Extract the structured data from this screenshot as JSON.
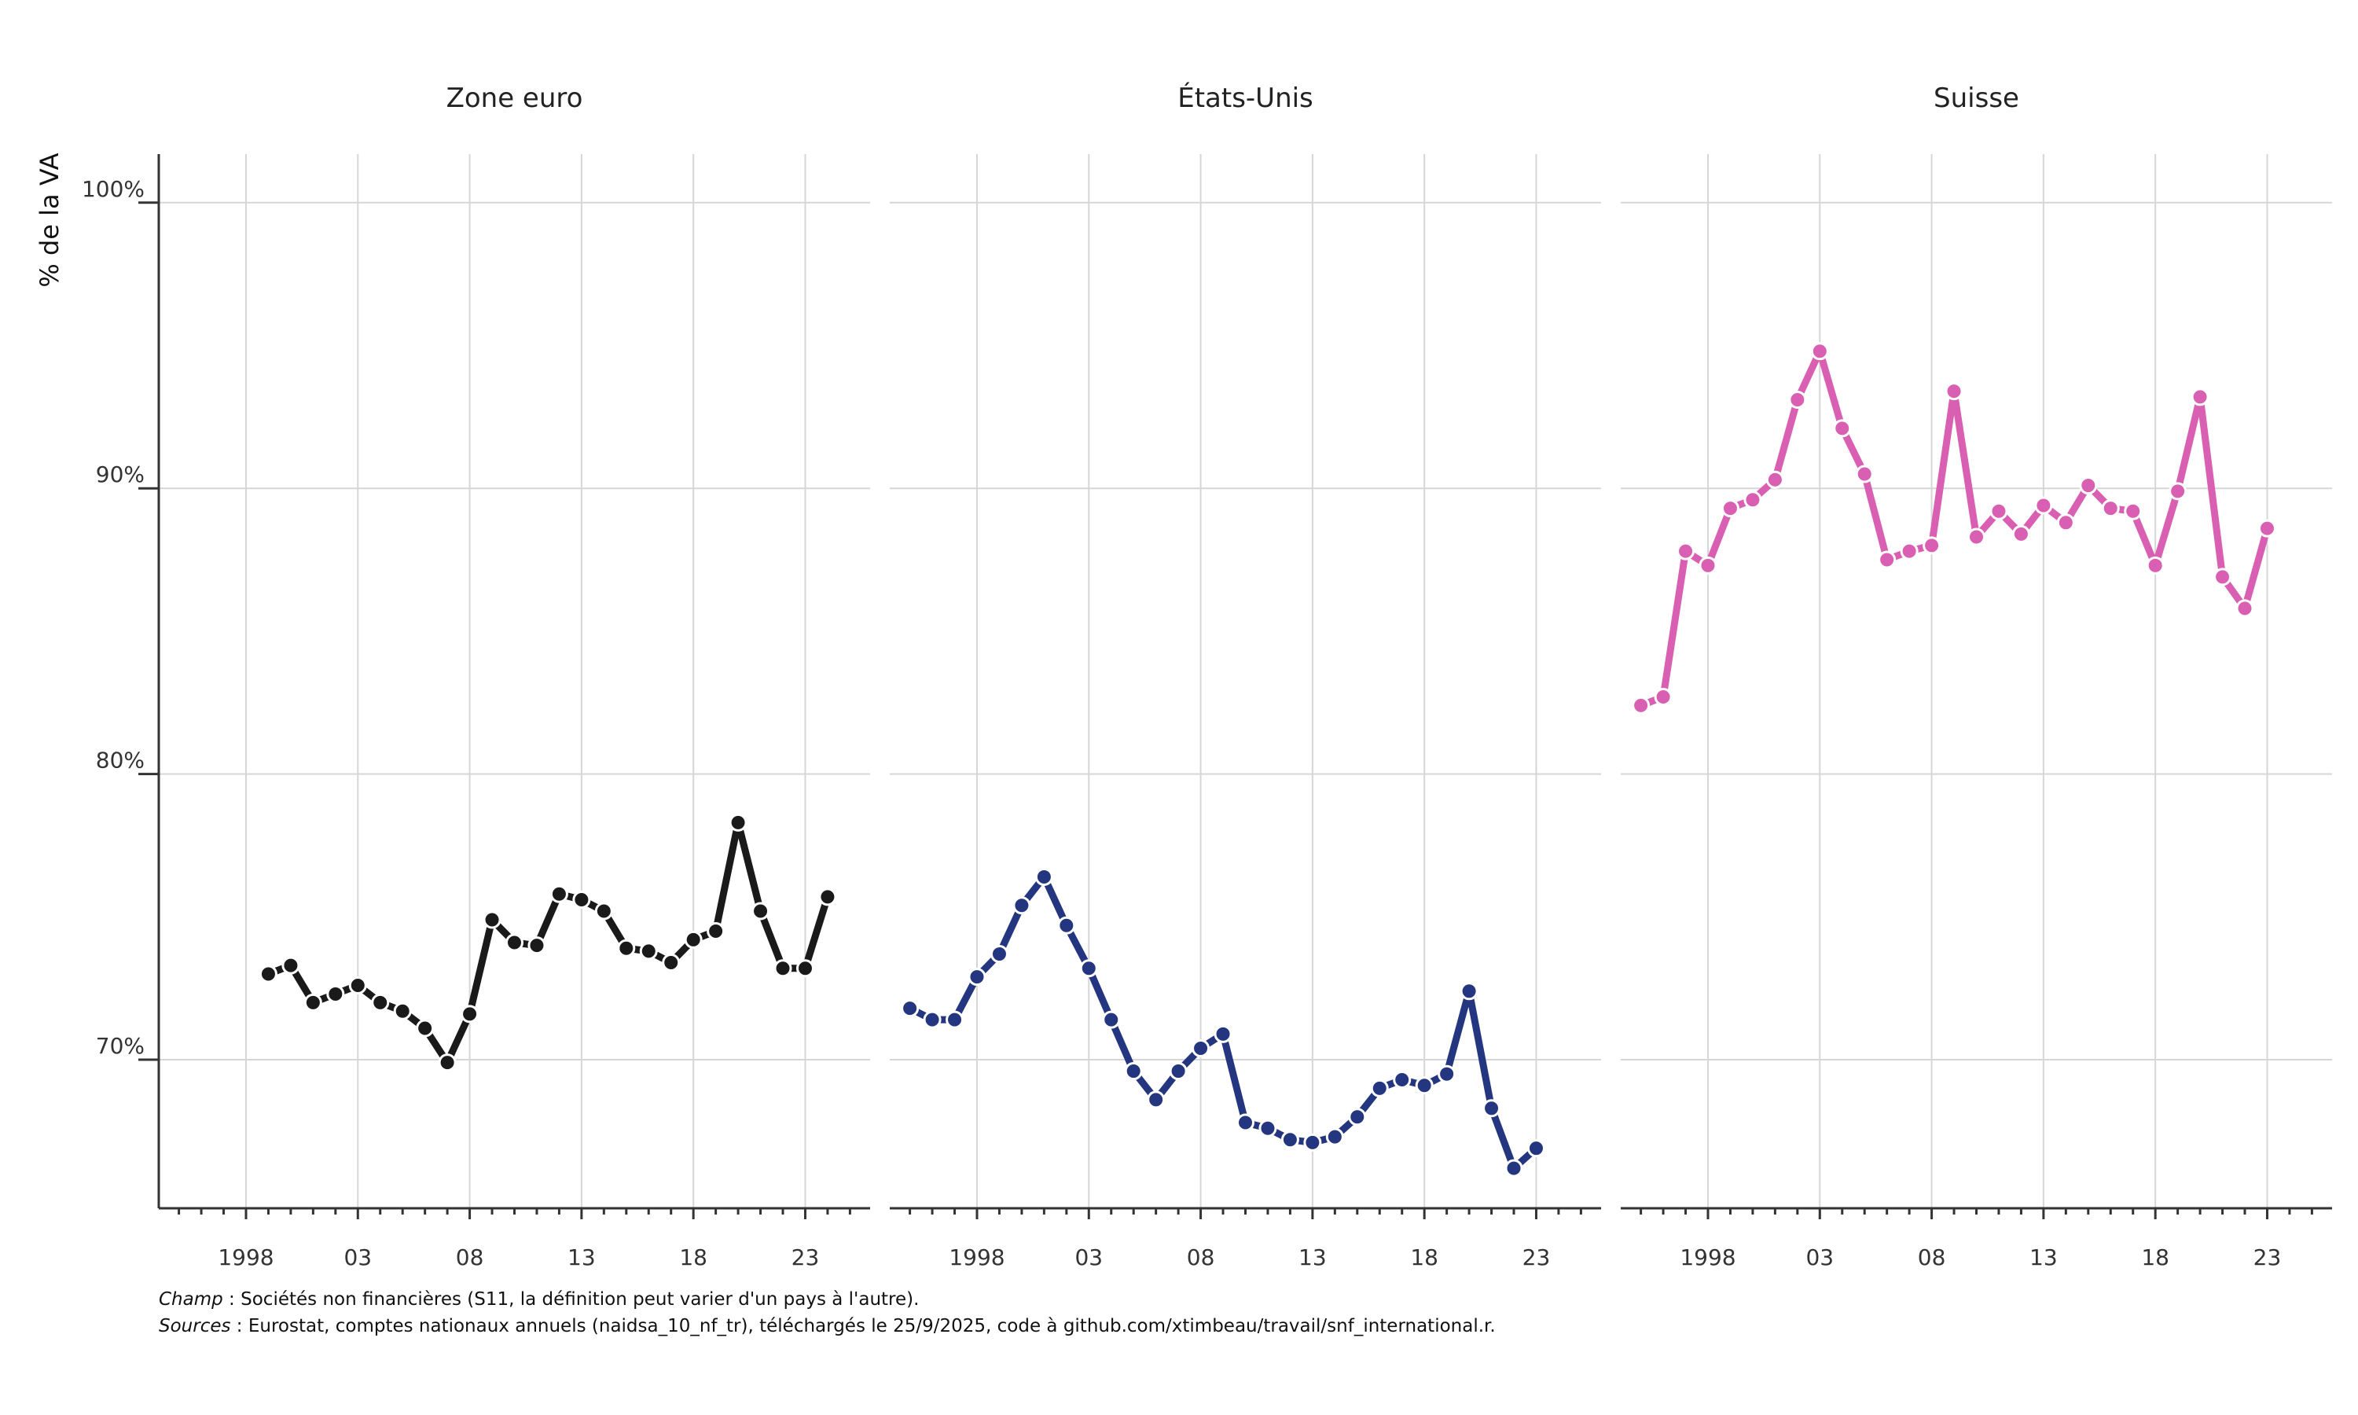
{
  "chart_data": [
    {
      "type": "line",
      "title": "Zone euro",
      "color": "#1a1a1a",
      "x": [
        1999,
        2000,
        2001,
        2002,
        2003,
        2004,
        2005,
        2006,
        2007,
        2008,
        2009,
        2010,
        2011,
        2012,
        2013,
        2014,
        2015,
        2016,
        2017,
        2018,
        2019,
        2020,
        2021,
        2022,
        2023,
        2024
      ],
      "y": [
        73.0,
        73.3,
        72.0,
        72.3,
        72.6,
        72.0,
        71.7,
        71.1,
        69.9,
        71.6,
        74.9,
        74.1,
        74.0,
        75.8,
        75.6,
        75.2,
        73.9,
        73.8,
        73.4,
        74.2,
        74.5,
        78.3,
        75.2,
        73.2,
        73.2,
        75.7
      ]
    },
    {
      "type": "line",
      "title": "États-Unis",
      "color": "#243680",
      "x": [
        1995,
        1996,
        1997,
        1998,
        1999,
        2000,
        2001,
        2002,
        2003,
        2004,
        2005,
        2006,
        2007,
        2008,
        2009,
        2010,
        2011,
        2012,
        2013,
        2014,
        2015,
        2016,
        2017,
        2018,
        2019,
        2020,
        2021,
        2022,
        2023
      ],
      "y": [
        71.8,
        71.4,
        71.4,
        72.9,
        73.7,
        75.4,
        76.4,
        74.7,
        73.2,
        71.4,
        69.6,
        68.6,
        69.6,
        70.4,
        70.9,
        67.8,
        67.6,
        67.2,
        67.1,
        67.3,
        68.0,
        69.0,
        69.3,
        69.1,
        69.5,
        72.4,
        68.3,
        66.2,
        66.9
      ]
    },
    {
      "type": "line",
      "title": "Suisse",
      "color": "#d95fb2",
      "x": [
        1995,
        1996,
        1997,
        1998,
        1999,
        2000,
        2001,
        2002,
        2003,
        2004,
        2005,
        2006,
        2007,
        2008,
        2009,
        2010,
        2011,
        2012,
        2013,
        2014,
        2015,
        2016,
        2017,
        2018,
        2019,
        2020,
        2021,
        2022,
        2023
      ],
      "y": [
        82.4,
        82.7,
        87.8,
        87.3,
        89.3,
        89.6,
        90.3,
        93.1,
        94.8,
        92.1,
        90.5,
        87.5,
        87.8,
        88.0,
        93.4,
        88.3,
        89.2,
        88.4,
        89.4,
        88.8,
        90.1,
        89.3,
        89.2,
        87.3,
        89.9,
        93.2,
        86.9,
        85.8,
        88.6
      ]
    }
  ],
  "axes": {
    "ylabel": "% de la VA",
    "ylim": [
      64.8,
      101.7
    ],
    "y_ticks": [
      70,
      80,
      90,
      100
    ],
    "y_tick_labels": [
      "70%",
      "80%",
      "90%",
      "100%"
    ],
    "xlim": [
      1994.1,
      2025.9
    ],
    "x_ticks": [
      1998,
      2003,
      2008,
      2013,
      2018,
      2023
    ],
    "x_tick_labels": [
      "1998",
      "03",
      "08",
      "13",
      "18",
      "23"
    ],
    "grid": true
  },
  "caption": {
    "line1_label": "Champ",
    "line1_text": " : Sociétés non financières (S11, la définition peut varier d'un pays à l'autre).",
    "line2_label": "Sources",
    "line2_text": " : Eurostat, comptes nationaux annuels (naidsa_10_nf_tr), téléchargés le 25/9/2025, code à github.com/xtimbeau/travail/snf_international.r."
  }
}
